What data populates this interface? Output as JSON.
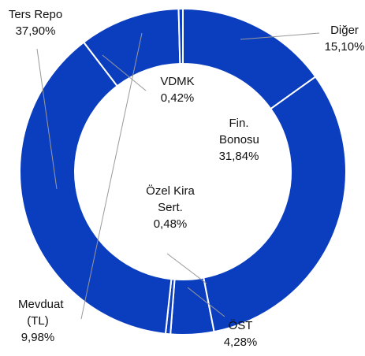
{
  "chart_data": {
    "type": "donut",
    "categories": [
      "Diğer",
      "Fin. Bonosu",
      "ÖST",
      "Özel Kira Sert.",
      "Ters Repo",
      "Mevduat (TL)",
      "VDMK"
    ],
    "values": [
      15.1,
      31.84,
      4.28,
      0.48,
      37.9,
      9.98,
      0.42
    ],
    "value_labels": [
      "15,10%",
      "31,84%",
      "4,28%",
      "0,48%",
      "37,90%",
      "9,98%",
      "0,42%"
    ],
    "color": "#0b3ebf"
  }
}
